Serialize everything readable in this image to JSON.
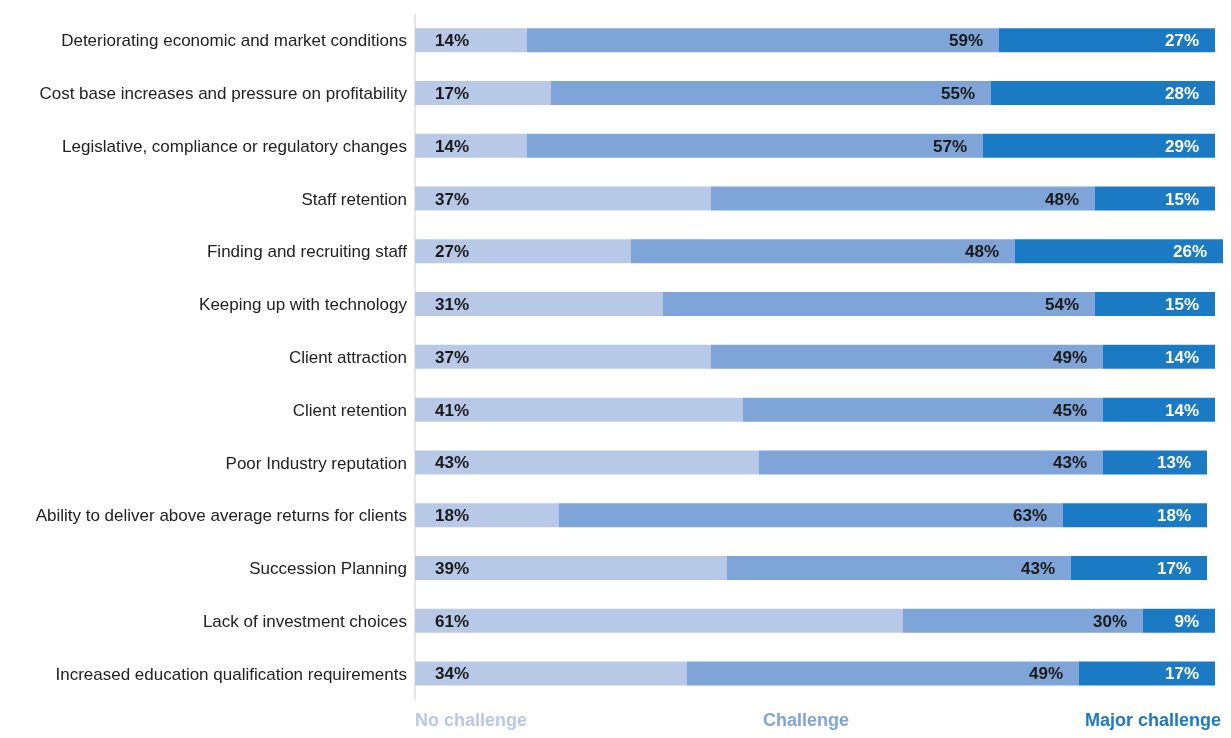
{
  "chart_data": {
    "type": "bar",
    "orientation": "horizontal",
    "stacked": true,
    "legend": "bottom",
    "tick_labels": "y",
    "grid": false,
    "xlim": [
      0,
      101
    ],
    "categories": [
      "Deteriorating economic and market conditions",
      "Cost base increases and pressure on profitability",
      "Legislative, compliance or regulatory changes",
      "Staff retention",
      "Finding and recruiting staff",
      "Keeping up with technology",
      "Client attraction",
      "Client retention",
      "Poor Industry reputation",
      "Ability to deliver above average returns for clients",
      "Succession Planning",
      "Lack of investment choices",
      "Increased education qualification requirements"
    ],
    "series": [
      {
        "name": "No challenge",
        "color": "#b8c9e8",
        "values": [
          14,
          17,
          14,
          37,
          27,
          31,
          37,
          41,
          43,
          18,
          39,
          61,
          34
        ],
        "value_labels": [
          "14%",
          "17%",
          "14%",
          "37%",
          "27%",
          "31%",
          "37%",
          "41%",
          "43%",
          "18%",
          "39%",
          "61%",
          "34%"
        ]
      },
      {
        "name": "Challenge",
        "color": "#7fa4d8",
        "values": [
          59,
          55,
          57,
          48,
          48,
          54,
          49,
          45,
          43,
          63,
          43,
          30,
          49
        ],
        "value_labels": [
          "59%",
          "55%",
          "57%",
          "48%",
          "48%",
          "54%",
          "49%",
          "45%",
          "43%",
          "63%",
          "43%",
          "30%",
          "49%"
        ]
      },
      {
        "name": "Major challenge",
        "color": "#1a7ac4",
        "values": [
          27,
          28,
          29,
          15,
          26,
          15,
          14,
          14,
          13,
          18,
          17,
          9,
          17
        ],
        "value_labels": [
          "27%",
          "28%",
          "29%",
          "15%",
          "26%",
          "15%",
          "14%",
          "14%",
          "13%",
          "18%",
          "17%",
          "9%",
          "17%"
        ]
      }
    ]
  }
}
